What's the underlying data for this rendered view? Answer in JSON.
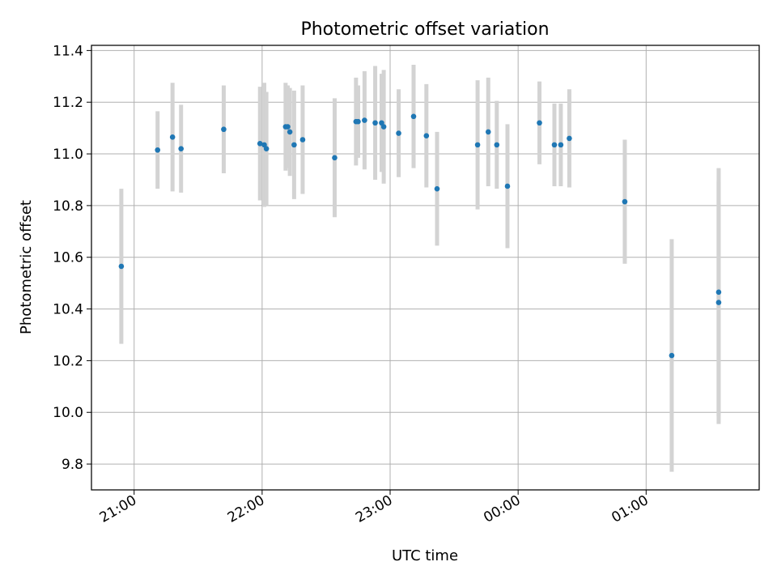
{
  "chart_data": {
    "type": "scatter",
    "title": "Photometric offset variation",
    "xlabel": "UTC time",
    "ylabel": "Photometric offset",
    "x_ticks": [
      "21:00",
      "22:00",
      "23:00",
      "00:00",
      "01:00"
    ],
    "y_ticks": [
      "9.8",
      "10.0",
      "10.2",
      "10.4",
      "10.6",
      "10.8",
      "11.0",
      "11.2",
      "11.4"
    ],
    "xlim": [
      "20:40",
      "01:53"
    ],
    "ylim": [
      9.7,
      11.42
    ],
    "grid": true,
    "colors": {
      "points": "#1f77b4",
      "errorbars": "#d3d3d3",
      "grid": "#b0b0b0"
    },
    "series": [
      {
        "x": [
          "20:54",
          "21:11",
          "21:18",
          "21:22",
          "21:42",
          "21:59",
          "22:01",
          "22:02",
          "22:11",
          "22:12",
          "22:13",
          "22:15",
          "22:19",
          "22:34",
          "22:44",
          "22:45",
          "22:48",
          "22:53",
          "22:56",
          "22:57",
          "23:04",
          "23:11",
          "23:17",
          "23:22",
          "23:41",
          "23:46",
          "23:50",
          "23:55",
          "00:10",
          "00:17",
          "00:20",
          "00:24",
          "00:50",
          "01:12",
          "01:34",
          "01:34"
        ],
        "y": [
          10.565,
          11.015,
          11.065,
          11.02,
          11.095,
          11.04,
          11.035,
          11.02,
          11.105,
          11.105,
          11.085,
          11.035,
          11.055,
          10.985,
          11.125,
          11.125,
          11.13,
          11.12,
          11.12,
          11.105,
          11.08,
          11.145,
          11.07,
          10.865,
          11.035,
          11.085,
          11.035,
          10.875,
          11.12,
          11.035,
          11.035,
          11.06,
          10.815,
          10.22,
          10.425,
          10.465
        ],
        "yerr": [
          0.3,
          0.15,
          0.21,
          0.17,
          0.17,
          0.22,
          0.24,
          0.22,
          0.17,
          0.16,
          0.17,
          0.21,
          0.21,
          0.23,
          0.17,
          0.14,
          0.19,
          0.22,
          0.19,
          0.22,
          0.17,
          0.2,
          0.2,
          0.22,
          0.25,
          0.21,
          0.17,
          0.24,
          0.16,
          0.16,
          0.16,
          0.19,
          0.24,
          0.45,
          0.47,
          0.48
        ]
      }
    ]
  }
}
